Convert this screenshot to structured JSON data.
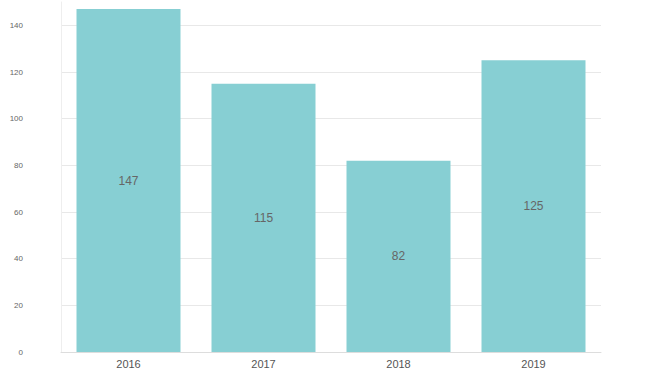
{
  "chart_data": {
    "type": "bar",
    "categories": [
      "2016",
      "2017",
      "2018",
      "2019"
    ],
    "values": [
      147,
      115,
      82,
      125
    ],
    "color": "#87cfd3",
    "ylim": [
      0,
      150
    ],
    "yticks": [
      0,
      20,
      40,
      60,
      80,
      100,
      120,
      140
    ],
    "grid": true,
    "data_labels": true
  }
}
